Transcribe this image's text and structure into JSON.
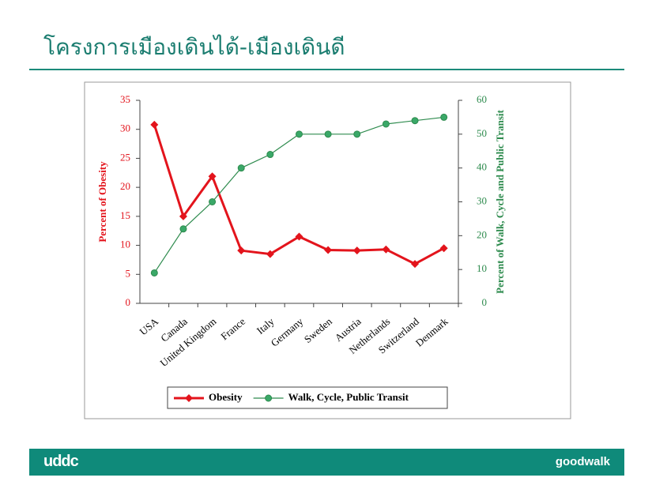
{
  "header": {
    "title": "โครงการเมืองเดินได้-เมืองเดินดี"
  },
  "chart_data": {
    "type": "line",
    "categories": [
      "USA",
      "Canada",
      "United Kingdom",
      "France",
      "Italy",
      "Germany",
      "Sweden",
      "Austria",
      "Netherlands",
      "Switzerland",
      "Denmark"
    ],
    "series": [
      {
        "name": "Obesity",
        "color": "#e3141c",
        "values": [
          30.8,
          15,
          21.9,
          9.1,
          8.5,
          11.5,
          9.2,
          9.1,
          9.3,
          6.8,
          9.5
        ]
      },
      {
        "name": "Walk, Cycle, Public Transit",
        "color": "#2e8b4e",
        "axis": "y2",
        "values": [
          9,
          22,
          30,
          40,
          44,
          50,
          50,
          50,
          53,
          54,
          55
        ]
      }
    ],
    "ylabel": "Percent of Obesity",
    "y2label": "Percent of Walk, Cycle and Public Transit",
    "ylim": [
      0,
      35
    ],
    "yticks": [
      0,
      5,
      10,
      15,
      20,
      25,
      30,
      35
    ],
    "y2lim": [
      0,
      60
    ],
    "y2ticks": [
      0,
      10,
      20,
      30,
      40,
      50,
      60
    ],
    "legend": "bottom"
  },
  "footer": {
    "left_logo": "uddc",
    "right_logo": "goodwalk"
  }
}
